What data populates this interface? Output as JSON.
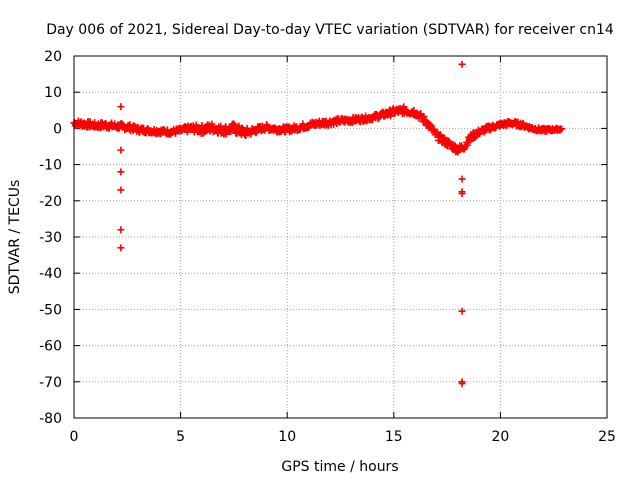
{
  "chart_data": {
    "type": "scatter",
    "title": "Day 006 of 2021, Sidereal Day-to-day VTEC variation (SDTVAR) for receiver cn14",
    "xlabel": "GPS time / hours",
    "ylabel": "SDTVAR / TECUs",
    "xlim": [
      0,
      25
    ],
    "ylim": [
      -80,
      20
    ],
    "xticks": [
      0,
      5,
      10,
      15,
      20,
      25
    ],
    "yticks": [
      -80,
      -70,
      -60,
      -50,
      -40,
      -30,
      -20,
      -10,
      0,
      10,
      20
    ],
    "grid": true,
    "marker": "+",
    "color": "#ff0000",
    "series": [
      {
        "name": "SDTVAR",
        "trace": {
          "x": [
            0.0,
            0.5,
            1.0,
            1.5,
            2.0,
            2.5,
            3.0,
            3.5,
            4.0,
            4.5,
            5.0,
            5.5,
            6.0,
            6.5,
            7.0,
            7.5,
            8.0,
            8.5,
            9.0,
            9.5,
            10.0,
            10.5,
            11.0,
            11.5,
            12.0,
            12.5,
            13.0,
            13.5,
            14.0,
            14.5,
            15.0,
            15.5,
            16.0,
            16.5,
            17.0,
            17.5,
            18.0,
            18.3,
            18.6,
            19.0,
            19.5,
            20.0,
            20.5,
            21.0,
            21.5,
            22.0,
            22.5,
            22.9
          ],
          "y": [
            1.5,
            1.2,
            0.8,
            0.9,
            0.6,
            0.4,
            -0.3,
            -0.6,
            -0.8,
            -1.0,
            -0.6,
            0.0,
            -0.3,
            0.2,
            -0.5,
            0.0,
            -1.2,
            -0.5,
            0.3,
            -0.2,
            -0.3,
            0.2,
            0.9,
            1.4,
            1.7,
            2.1,
            2.3,
            2.6,
            3.0,
            3.8,
            4.6,
            5.0,
            4.5,
            2.0,
            -2.0,
            -4.0,
            -5.8,
            -5.0,
            -2.5,
            -1.0,
            0.2,
            1.0,
            1.5,
            1.0,
            0.0,
            -0.5,
            -0.3,
            -0.2
          ],
          "spread": [
            0.9,
            0.9,
            0.8,
            0.9,
            0.8,
            0.9,
            0.8,
            0.7,
            0.7,
            0.7,
            0.8,
            1.0,
            1.2,
            1.3,
            1.2,
            1.4,
            1.2,
            0.9,
            0.8,
            0.8,
            0.8,
            0.8,
            0.8,
            0.8,
            0.8,
            0.7,
            0.7,
            0.7,
            0.7,
            0.8,
            0.9,
            1.0,
            1.0,
            1.0,
            1.0,
            1.0,
            1.0,
            0.9,
            0.9,
            0.8,
            0.7,
            0.6,
            0.6,
            0.6,
            0.5,
            0.5,
            0.4,
            0.3
          ]
        },
        "outliers": {
          "x": [
            2.2,
            2.2,
            2.2,
            2.2,
            2.2,
            2.2,
            18.2,
            18.2,
            18.2,
            18.2,
            18.2,
            18.2,
            18.2
          ],
          "y": [
            6,
            -6,
            -12,
            -17,
            -28,
            -33,
            17.7,
            -14,
            -17.5,
            -18,
            -50.5,
            -70,
            -70.5
          ]
        }
      }
    ]
  }
}
